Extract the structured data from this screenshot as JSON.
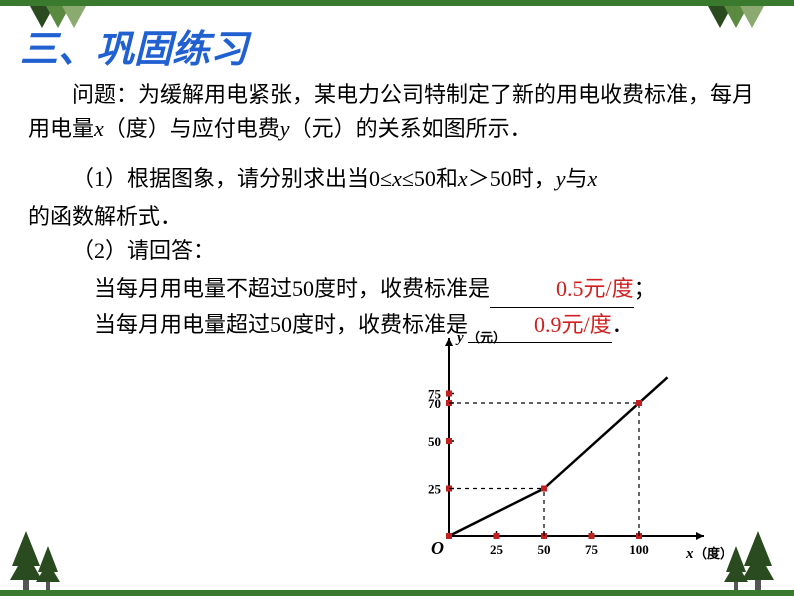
{
  "heading": "三、巩固练习",
  "problem_intro": "问题：为缓解用电紧张，某电力公司特制定了新的用电收费标准，每月用电量",
  "var_x": "x",
  "unit_degree": "（度）与应付电费",
  "var_y": "y",
  "tail_intro": "（元）的关系如图所示．",
  "q1_prefix": "（1）根据图象，请分别求出当0≤",
  "q1_mid": "≤50和",
  "q1_suffix": "＞50时，",
  "q1_tail": "与",
  "q1_end": "的函数解析式．",
  "q2_prefix": "（2）请回答：",
  "q2_line1_prefix": "当每月用电量不超过50度时，收费标准是",
  "q2_answer1": "0.5元/度",
  "q2_line1_suffix": "；",
  "q2_line2_prefix": "当每月用电量超过50度时，收费标准是",
  "q2_answer2": "0.9元/度",
  "q2_line2_suffix": "．",
  "chart": {
    "y_label": "y",
    "y_unit": "（元）",
    "x_label": "x",
    "x_unit": "（度）",
    "origin_label": "O",
    "x_ticks": [
      25,
      50,
      75,
      100
    ],
    "y_ticks": [
      25,
      50,
      70,
      75
    ],
    "points": [
      {
        "x": 50,
        "y": 25
      },
      {
        "x": 100,
        "y": 70
      }
    ],
    "line_segments": [
      {
        "x1": 0,
        "y1": 0,
        "x2": 50,
        "y2": 25
      },
      {
        "x1": 50,
        "y1": 25,
        "x2": 115,
        "y2": 83.5
      }
    ],
    "dash_lines": [
      {
        "x1": 50,
        "y1": 0,
        "x2": 50,
        "y2": 25
      },
      {
        "x1": 0,
        "y1": 25,
        "x2": 50,
        "y2": 25
      },
      {
        "x1": 100,
        "y1": 0,
        "x2": 100,
        "y2": 70
      },
      {
        "x1": 0,
        "y1": 70,
        "x2": 100,
        "y2": 70
      }
    ],
    "colors": {
      "axis": "#000000",
      "line": "#000000",
      "dash": "#000000",
      "tick_text": "#000000",
      "marker_red": "#c02020"
    }
  }
}
